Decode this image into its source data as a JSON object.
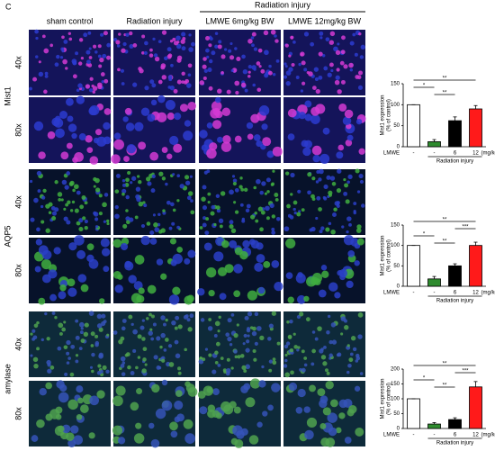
{
  "panel_label": "C",
  "group_header": "Radiation injury",
  "columns": [
    "sham control",
    "Radiation injury",
    "LMWE 6mg/kg BW",
    "LMWE 12mg/kg BW"
  ],
  "rows": [
    {
      "marker": "Mist1",
      "magnifications": [
        "40x",
        "80x"
      ]
    },
    {
      "marker": "AQP5",
      "magnifications": [
        "40x",
        "80x"
      ]
    },
    {
      "marker": "amylase",
      "magnifications": [
        "40x",
        "80x"
      ]
    }
  ],
  "chart_data": [
    {
      "type": "bar",
      "ylabel": [
        "Mist1 expression",
        "(% of control)"
      ],
      "x_group_label": "LMWE",
      "x_unit": "(mg/kg BW)",
      "x_sublabel": "Radiation injury",
      "categories": [
        "-",
        "-",
        "6",
        "12"
      ],
      "values": [
        100,
        12,
        62,
        90
      ],
      "errors": [
        0,
        5,
        9,
        8
      ],
      "colors": [
        "#ffffff",
        "#2e8b2e",
        "#000000",
        "#ff1a1a"
      ],
      "ylim": [
        0,
        150
      ],
      "yticks": [
        0,
        50,
        100,
        150
      ],
      "annotations": [
        {
          "text": "**",
          "from": 0,
          "to": 3
        },
        {
          "text": "*",
          "from": 0,
          "to": 1
        },
        {
          "text": "**",
          "from": 1,
          "to": 2
        }
      ]
    },
    {
      "type": "bar",
      "ylabel": [
        "Mist1 expression",
        "(% of control)"
      ],
      "x_group_label": "LMWE",
      "x_unit": "(mg/kg BW)",
      "x_sublabel": "Radiation injury",
      "categories": [
        "-",
        "-",
        "6",
        "12"
      ],
      "values": [
        100,
        18,
        50,
        100
      ],
      "errors": [
        0,
        6,
        5,
        8
      ],
      "colors": [
        "#ffffff",
        "#2e8b2e",
        "#000000",
        "#ff1a1a"
      ],
      "ylim": [
        0,
        150
      ],
      "yticks": [
        0,
        50,
        100,
        150
      ],
      "annotations": [
        {
          "text": "**",
          "from": 0,
          "to": 3
        },
        {
          "text": "***",
          "from": 2,
          "to": 3
        },
        {
          "text": "*",
          "from": 0,
          "to": 1
        },
        {
          "text": "**",
          "from": 1,
          "to": 2
        }
      ]
    },
    {
      "type": "bar",
      "ylabel": [
        "Mist1 expression",
        "(% of control)"
      ],
      "x_group_label": "LMWE",
      "x_unit": "(mg/kg BW)",
      "x_sublabel": "Radiation injury",
      "categories": [
        "-",
        "-",
        "6",
        "12"
      ],
      "values": [
        100,
        15,
        30,
        140
      ],
      "errors": [
        0,
        5,
        6,
        18
      ],
      "colors": [
        "#ffffff",
        "#2e8b2e",
        "#000000",
        "#ff1a1a"
      ],
      "ylim": [
        0,
        200
      ],
      "yticks": [
        0,
        50,
        100,
        150,
        200
      ],
      "annotations": [
        {
          "text": "**",
          "from": 0,
          "to": 3
        },
        {
          "text": "***",
          "from": 2,
          "to": 3
        },
        {
          "text": "*",
          "from": 0,
          "to": 1
        },
        {
          "text": "**",
          "from": 1,
          "to": 2
        }
      ]
    }
  ]
}
